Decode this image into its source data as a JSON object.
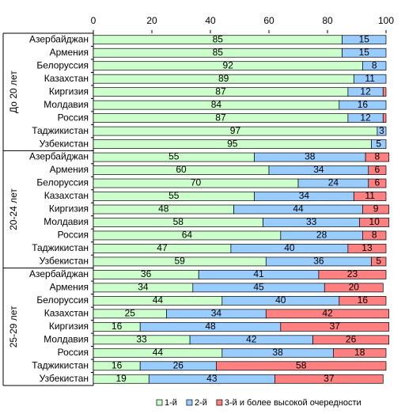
{
  "chart_data": {
    "type": "bar",
    "orientation": "horizontal",
    "stacked": true,
    "xlim": [
      0,
      100
    ],
    "x_ticks": [
      "0",
      "20",
      "40",
      "60",
      "80",
      "100"
    ],
    "groups": [
      {
        "label": "До 20 лет",
        "start": 0,
        "count": 9
      },
      {
        "label": "20-24 лет",
        "start": 9,
        "count": 9
      },
      {
        "label": "25-29 лет",
        "start": 18,
        "count": 9
      }
    ],
    "categories": [
      "Азербайджан",
      "Армения",
      "Белоруссия",
      "Казахстан",
      "Киргизия",
      "Молдавия",
      "Россия",
      "Таджикистан",
      "Узбекистан",
      "Азербайджан",
      "Армения",
      "Белоруссия",
      "Казахстан",
      "Киргизия",
      "Молдавия",
      "Россия",
      "Таджикистан",
      "Узбекистан",
      "Азербайджан",
      "Армения",
      "Белоруссия",
      "Казахстан",
      "Киргизия",
      "Молдавия",
      "Россия",
      "Таджикистан",
      "Узбекистан"
    ],
    "series": [
      {
        "name": "1-й",
        "color": "#ccffcc",
        "values": [
          85,
          85,
          92,
          89,
          87,
          84,
          87,
          97,
          95,
          55,
          60,
          70,
          55,
          48,
          58,
          64,
          47,
          59,
          36,
          34,
          44,
          25,
          16,
          33,
          44,
          16,
          19
        ]
      },
      {
        "name": "2-й",
        "color": "#99ccff",
        "values": [
          15,
          15,
          8,
          11,
          12,
          16,
          12,
          3,
          5,
          38,
          34,
          24,
          34,
          44,
          33,
          28,
          40,
          36,
          41,
          45,
          40,
          34,
          48,
          42,
          38,
          26,
          43
        ]
      },
      {
        "name": "3-й и более высокой очередности",
        "color": "#ff8080",
        "values": [
          0,
          0,
          0,
          0,
          1,
          0,
          1,
          0,
          0,
          8,
          6,
          6,
          11,
          9,
          10,
          8,
          13,
          5,
          23,
          20,
          16,
          42,
          37,
          26,
          18,
          58,
          37
        ]
      }
    ],
    "data_labels": [
      [
        "85",
        "85",
        "92",
        "89",
        "87",
        "84",
        "87",
        "97",
        "95",
        "55",
        "60",
        "70",
        "55",
        "48",
        "58",
        "64",
        "47",
        "59",
        "36",
        "34",
        "44",
        "25",
        "16",
        "33",
        "44",
        "16",
        "19"
      ],
      [
        "15",
        "15",
        "8",
        "11",
        "12",
        "16",
        "12",
        "3",
        "5",
        "38",
        "34",
        "24",
        "34",
        "44",
        "33",
        "28",
        "40",
        "36",
        "41",
        "45",
        "40",
        "34",
        "48",
        "42",
        "38",
        "26",
        "43"
      ],
      [
        "",
        "",
        "",
        "",
        "",
        "",
        "",
        "",
        "",
        "8",
        "6",
        "6",
        "11",
        "9",
        "10",
        "8",
        "13",
        "5",
        "23",
        "20",
        "16",
        "42",
        "37",
        "26",
        "18",
        "58",
        "37"
      ]
    ],
    "legend_position": "bottom"
  }
}
